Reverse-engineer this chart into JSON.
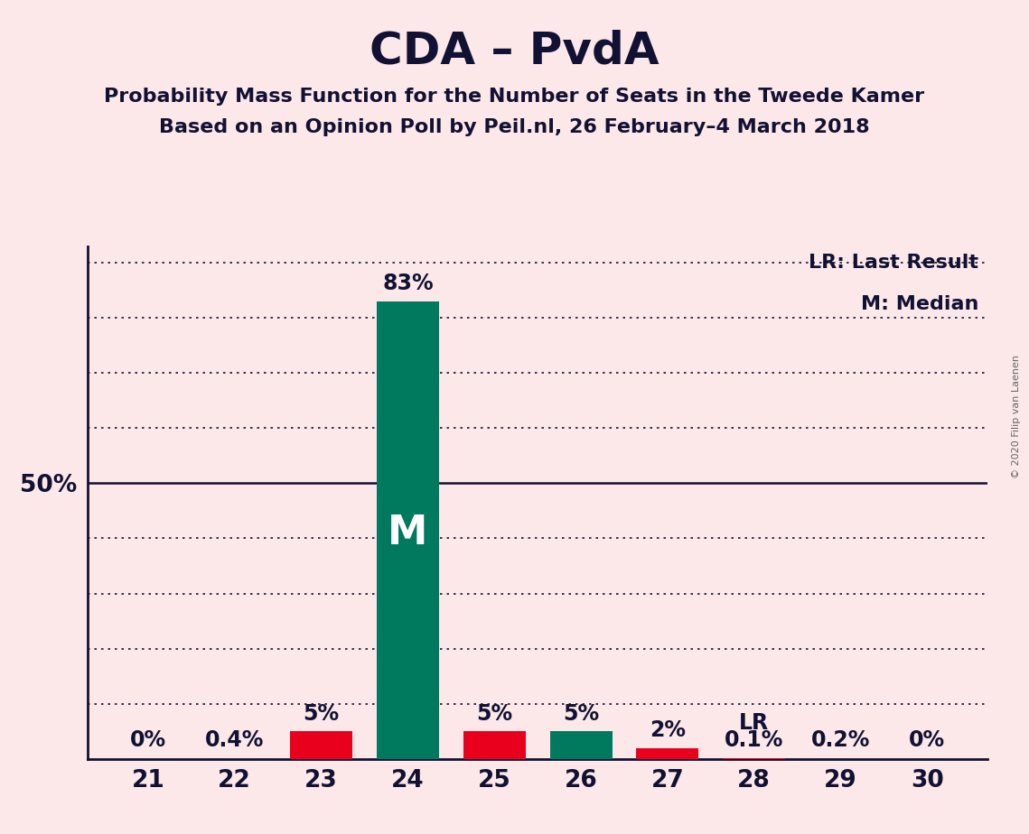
{
  "title": "CDA – PvdA",
  "subtitle1": "Probability Mass Function for the Number of Seats in the Tweede Kamer",
  "subtitle2": "Based on an Opinion Poll by Peil.nl, 26 February–4 March 2018",
  "seats": [
    21,
    22,
    23,
    24,
    25,
    26,
    27,
    28,
    29,
    30
  ],
  "values": [
    0.0,
    0.4,
    5.0,
    83.0,
    5.0,
    5.0,
    2.0,
    0.1,
    0.2,
    0.0
  ],
  "bar_colors": [
    "none",
    "none",
    "#e8001c",
    "#007a5e",
    "#e8001c",
    "#007a5e",
    "#e8001c",
    "#e8001c",
    "none",
    "none"
  ],
  "labels": [
    "0%",
    "0.4%",
    "5%",
    "83%",
    "5%",
    "5%",
    "2%",
    "0.1%",
    "0.2%",
    "0%"
  ],
  "median_seat": 24,
  "lr_seat": 28,
  "background_color": "#fce8e8",
  "ytick_values": [
    10,
    20,
    30,
    40,
    50,
    60,
    70,
    80,
    90
  ],
  "ylabel_50": "50%",
  "ymax": 93,
  "legend_lr": "LR: Last Result",
  "legend_m": "M: Median",
  "copyright": "© 2020 Filip van Laenen",
  "title_fontsize": 36,
  "subtitle_fontsize": 16,
  "bar_width": 0.72,
  "dotted_line_color": "#111133",
  "solid_line_color": "#111133",
  "text_color": "#111133"
}
